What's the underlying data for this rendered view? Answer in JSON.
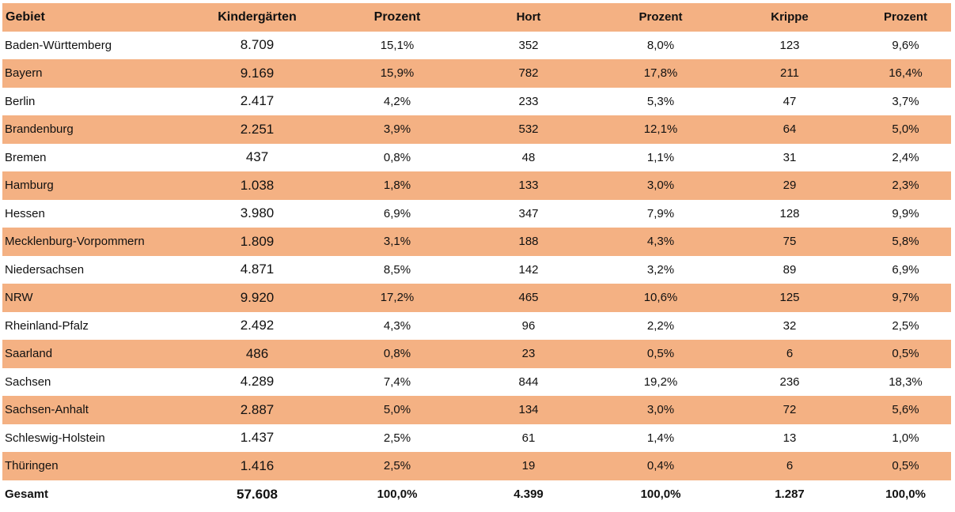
{
  "table": {
    "headers": [
      "Gebiet",
      "Kindergärten",
      "Prozent",
      "Hort",
      "Prozent",
      "Krippe",
      "Prozent"
    ],
    "rows": [
      [
        "Baden-Württemberg",
        "8.709",
        "15,1%",
        "352",
        "8,0%",
        "123",
        "9,6%"
      ],
      [
        "Bayern",
        "9.169",
        "15,9%",
        "782",
        "17,8%",
        "211",
        "16,4%"
      ],
      [
        "Berlin",
        "2.417",
        "4,2%",
        "233",
        "5,3%",
        "47",
        "3,7%"
      ],
      [
        "Brandenburg",
        "2.251",
        "3,9%",
        "532",
        "12,1%",
        "64",
        "5,0%"
      ],
      [
        "Bremen",
        "437",
        "0,8%",
        "48",
        "1,1%",
        "31",
        "2,4%"
      ],
      [
        "Hamburg",
        "1.038",
        "1,8%",
        "133",
        "3,0%",
        "29",
        "2,3%"
      ],
      [
        "Hessen",
        "3.980",
        "6,9%",
        "347",
        "7,9%",
        "128",
        "9,9%"
      ],
      [
        "Mecklenburg-Vorpommern",
        "1.809",
        "3,1%",
        "188",
        "4,3%",
        "75",
        "5,8%"
      ],
      [
        "Niedersachsen",
        "4.871",
        "8,5%",
        "142",
        "3,2%",
        "89",
        "6,9%"
      ],
      [
        "NRW",
        "9.920",
        "17,2%",
        "465",
        "10,6%",
        "125",
        "9,7%"
      ],
      [
        "Rheinland-Pfalz",
        "2.492",
        "4,3%",
        "96",
        "2,2%",
        "32",
        "2,5%"
      ],
      [
        "Saarland",
        "486",
        "0,8%",
        "23",
        "0,5%",
        "6",
        "0,5%"
      ],
      [
        "Sachsen",
        "4.289",
        "7,4%",
        "844",
        "19,2%",
        "236",
        "18,3%"
      ],
      [
        "Sachsen-Anhalt",
        "2.887",
        "5,0%",
        "134",
        "3,0%",
        "72",
        "5,6%"
      ],
      [
        "Schleswig-Holstein",
        "1.437",
        "2,5%",
        "61",
        "1,4%",
        "13",
        "1,0%"
      ],
      [
        "Thüringen",
        "1.416",
        "2,5%",
        "19",
        "0,4%",
        "6",
        "0,5%"
      ]
    ],
    "total": [
      "Gesamt",
      "57.608",
      "100,0%",
      "4.399",
      "100,0%",
      "1.287",
      "100,0%"
    ]
  },
  "colors": {
    "stripe": "#f4b183",
    "background": "#ffffff"
  }
}
